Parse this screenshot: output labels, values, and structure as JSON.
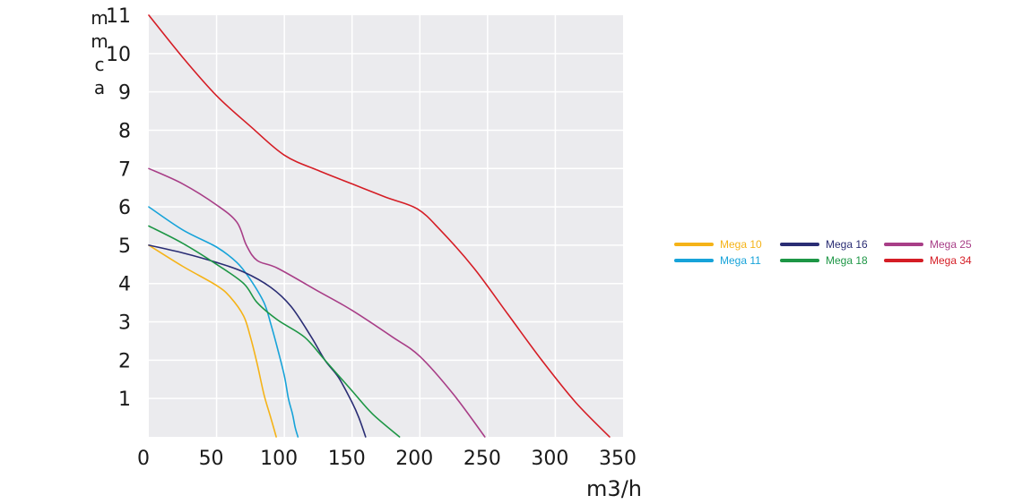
{
  "chart_data": {
    "type": "line",
    "xlabel": "m3/h",
    "ylabel": "m m c a",
    "ylabel_chars": [
      "m",
      "m",
      "c",
      "a"
    ],
    "xlim": [
      0,
      350
    ],
    "ylim": [
      0,
      11
    ],
    "x_ticks": [
      0,
      50,
      100,
      150,
      200,
      250,
      300,
      350
    ],
    "x_tick_labels": [
      "0",
      "50",
      "100",
      "150",
      "200",
      "250",
      "300",
      "350"
    ],
    "y_ticks": [
      1,
      2,
      3,
      4,
      5,
      6,
      7,
      8,
      9,
      10,
      11
    ],
    "y_tick_labels": [
      "1",
      "2",
      "3",
      "4",
      "5",
      "6",
      "7",
      "8",
      "9",
      "10",
      "11"
    ],
    "grid": true,
    "legend_position": "right",
    "colors": {
      "plot_background": "#ebebee",
      "grid": "#ffffff"
    },
    "series": [
      {
        "name": "Mega 10",
        "color": "#f5b318",
        "x": [
          0,
          25,
          50,
          60,
          70,
          75,
          80,
          85,
          90,
          94
        ],
        "y": [
          5.0,
          4.45,
          3.95,
          3.65,
          3.15,
          2.6,
          1.9,
          1.1,
          0.5,
          0
        ]
      },
      {
        "name": "Mega 11",
        "color": "#17a3d9",
        "x": [
          0,
          25,
          50,
          65,
          75,
          85,
          90,
          95,
          100,
          103,
          106,
          108,
          110
        ],
        "y": [
          6.0,
          5.4,
          4.95,
          4.55,
          4.1,
          3.5,
          2.95,
          2.3,
          1.6,
          1.0,
          0.6,
          0.25,
          0
        ]
      },
      {
        "name": "Mega 16",
        "color": "#2a2d74",
        "x": [
          0,
          25,
          50,
          70,
          90,
          105,
          120,
          130,
          140,
          150,
          155,
          160
        ],
        "y": [
          5.0,
          4.8,
          4.55,
          4.3,
          3.9,
          3.4,
          2.6,
          2.0,
          1.55,
          0.9,
          0.5,
          0
        ]
      },
      {
        "name": "Mega 18",
        "color": "#1d9645",
        "x": [
          0,
          25,
          50,
          70,
          80,
          95,
          115,
          130,
          150,
          165,
          185
        ],
        "y": [
          5.5,
          5.05,
          4.5,
          4.0,
          3.5,
          3.05,
          2.6,
          2.0,
          1.2,
          0.6,
          0
        ]
      },
      {
        "name": "Mega 25",
        "color": "#a83e87",
        "x": [
          0,
          25,
          50,
          65,
          72,
          80,
          95,
          125,
          150,
          180,
          200,
          225,
          248
        ],
        "y": [
          7.0,
          6.6,
          6.05,
          5.6,
          5.0,
          4.6,
          4.4,
          3.8,
          3.3,
          2.6,
          2.1,
          1.1,
          0
        ]
      },
      {
        "name": "Mega 34",
        "color": "#d51d25",
        "x": [
          0,
          25,
          50,
          75,
          100,
          125,
          150,
          175,
          198,
          215,
          240,
          265,
          290,
          315,
          340
        ],
        "y": [
          11.0,
          9.9,
          8.9,
          8.1,
          7.35,
          6.95,
          6.6,
          6.25,
          5.95,
          5.4,
          4.4,
          3.2,
          2.0,
          0.9,
          0
        ]
      }
    ]
  }
}
